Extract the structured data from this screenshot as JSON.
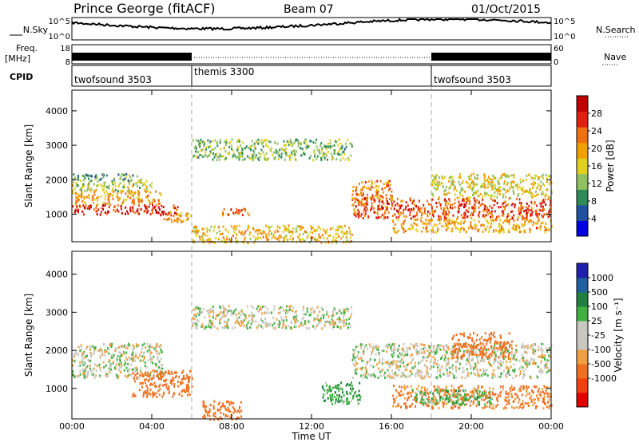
{
  "header": {
    "station": "Prince George (fitACF)",
    "beam": "Beam 07",
    "date": "01/Oct/2015"
  },
  "top_panels": {
    "nsky_label": "N.Sky",
    "nsearch_label": "N.Search",
    "freq_label_1": "Freq.",
    "freq_label_2": "[MHz]",
    "nave_label": "Nave",
    "cpid_label": "CPID",
    "nsky_ticks": [
      "10^5",
      "10^0"
    ],
    "nsearch_ticks": [
      "10^5",
      "10^0"
    ],
    "freq_ticks": [
      "18",
      "8"
    ],
    "nave_ticks": [
      "60",
      "0"
    ]
  },
  "cpid_segments": [
    {
      "label": "twofsound 3503",
      "start_hour": 0,
      "end_hour": 6
    },
    {
      "label": "themis 3300",
      "start_hour": 6,
      "end_hour": 18
    },
    {
      "label": "twofsound 3503",
      "start_hour": 18,
      "end_hour": 24
    }
  ],
  "colors": {
    "power_scale": [
      "#0000e0",
      "#2050a0",
      "#2e8b57",
      "#90c060",
      "#e0d020",
      "#f0a000",
      "#f07010",
      "#e02010",
      "#c00000"
    ],
    "velocity_scale": [
      "#e00000",
      "#f04010",
      "#f07020",
      "#f0a040",
      "#c8c8c0",
      "#c8c8c0",
      "#40b040",
      "#208040",
      "#2060a0",
      "#2020b0"
    ]
  },
  "chart_data": [
    {
      "type": "heatmap",
      "name": "power",
      "xlabel": "",
      "ylabel": "Slant Range [km]",
      "xlim": [
        0,
        24
      ],
      "ylim": [
        200,
        4600
      ],
      "y_ticks": [
        "4000",
        "3000",
        "2000",
        "1000"
      ],
      "colorbar": {
        "label": "Power [dB]",
        "range": [
          0,
          32
        ],
        "ticks": [
          "28",
          "24",
          "20",
          "16",
          "12",
          "8",
          "4"
        ]
      },
      "bands": [
        {
          "x": [
            0,
            5.3
          ],
          "y": [
            1000,
            1300
          ],
          "value": 27
        },
        {
          "x": [
            0,
            4.5
          ],
          "y": [
            1300,
            1700
          ],
          "value": 20
        },
        {
          "x": [
            0,
            4.0
          ],
          "y": [
            1700,
            2000
          ],
          "value": 14
        },
        {
          "x": [
            0,
            3.5
          ],
          "y": [
            2000,
            2200
          ],
          "value": 10
        },
        {
          "x": [
            4.5,
            6
          ],
          "y": [
            800,
            1100
          ],
          "value": 20
        },
        {
          "x": [
            6,
            14
          ],
          "y": [
            2600,
            3200
          ],
          "value": 12
        },
        {
          "x": [
            7.5,
            9
          ],
          "y": [
            1000,
            1200
          ],
          "value": 24
        },
        {
          "x": [
            6,
            14
          ],
          "y": [
            200,
            700
          ],
          "value": 18
        },
        {
          "x": [
            14,
            16
          ],
          "y": [
            1300,
            2000
          ],
          "value": 22
        },
        {
          "x": [
            14,
            24
          ],
          "y": [
            900,
            1500
          ],
          "value": 25
        },
        {
          "x": [
            16,
            24
          ],
          "y": [
            500,
            900
          ],
          "value": 20
        },
        {
          "x": [
            18,
            24
          ],
          "y": [
            1500,
            2200
          ],
          "value": 16
        }
      ]
    },
    {
      "type": "heatmap",
      "name": "velocity",
      "xlabel": "Time UT",
      "ylabel": "Slant Range [km]",
      "xlim": [
        0,
        24
      ],
      "ylim": [
        200,
        4600
      ],
      "y_ticks": [
        "4000",
        "3000",
        "2000",
        "1000"
      ],
      "x_ticks": [
        "00:00",
        "04:00",
        "08:00",
        "12:00",
        "16:00",
        "20:00",
        "00:00"
      ],
      "colorbar": {
        "label": "Velocity [m s⁻¹]",
        "ticks": [
          "1000",
          "500",
          "100",
          "25",
          "-25",
          "-100",
          "-500",
          "-1000"
        ]
      },
      "bands": [
        {
          "x": [
            0,
            4.5
          ],
          "y": [
            1300,
            2200
          ],
          "value": 0
        },
        {
          "x": [
            3,
            6
          ],
          "y": [
            800,
            1500
          ],
          "value": -300
        },
        {
          "x": [
            6,
            14
          ],
          "y": [
            2600,
            3200
          ],
          "value": 0
        },
        {
          "x": [
            6.5,
            8.5
          ],
          "y": [
            200,
            700
          ],
          "value": -300
        },
        {
          "x": [
            12.5,
            14.5
          ],
          "y": [
            600,
            1200
          ],
          "value": 80
        },
        {
          "x": [
            14,
            24
          ],
          "y": [
            1300,
            2200
          ],
          "value": 0
        },
        {
          "x": [
            16,
            24
          ],
          "y": [
            500,
            1100
          ],
          "value": -120
        },
        {
          "x": [
            17,
            21
          ],
          "y": [
            600,
            1000
          ],
          "value": 60
        },
        {
          "x": [
            19,
            22
          ],
          "y": [
            1800,
            2500
          ],
          "value": -400
        }
      ]
    }
  ]
}
